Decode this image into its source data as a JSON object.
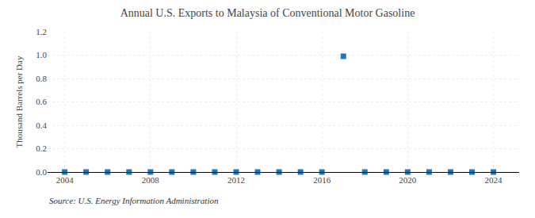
{
  "chart_data": {
    "type": "scatter",
    "title": "Annual U.S. Exports to Malaysia of Conventional Motor Gasoline",
    "ylabel": "Thousand Barrels per Day",
    "annotations": [
      "Source: U.S. Energy Information Administration"
    ],
    "x": [
      2004,
      2005,
      2006,
      2007,
      2008,
      2009,
      2010,
      2011,
      2012,
      2013,
      2014,
      2015,
      2016,
      2017,
      2018,
      2019,
      2020,
      2021,
      2022,
      2023,
      2024
    ],
    "values": [
      0.0,
      0.0,
      0.0,
      0.0,
      0.0,
      0.0,
      0.0,
      0.0,
      0.0,
      0.0,
      0.0,
      0.0,
      0.0,
      0.99,
      0.0,
      0.0,
      0.0,
      0.0,
      0.0,
      0.0,
      0.0
    ],
    "marker": "square",
    "xlim": [
      2003.2,
      2025.2
    ],
    "xticks": [
      2004,
      2008,
      2012,
      2016,
      2020,
      2024
    ],
    "ylim": [
      0.0,
      1.2
    ],
    "yticks": [
      {
        "value": 0,
        "label": "0.0"
      },
      0.2,
      0.4,
      0.6,
      0.8,
      {
        "value": 1,
        "label": "1.0"
      },
      1.2
    ],
    "grid": true
  }
}
